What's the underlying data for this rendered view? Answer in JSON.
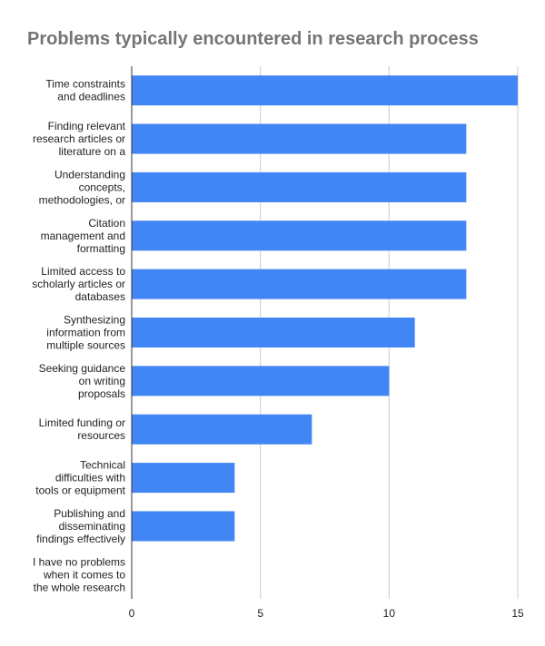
{
  "chart_data": {
    "type": "bar",
    "orientation": "horizontal",
    "title": "Problems typically encountered in research process",
    "xlabel": "",
    "ylabel": "",
    "xlim": [
      0,
      15
    ],
    "ticks": [
      0,
      5,
      10,
      15
    ],
    "grid": true,
    "legend": "none",
    "bar_color": "#4285f4",
    "categories": [
      [
        "Time constraints",
        "and deadlines"
      ],
      [
        "Finding relevant",
        "research articles or",
        "literature on a"
      ],
      [
        "Understanding",
        "concepts,",
        "methodologies, or"
      ],
      [
        "Citation",
        "management and",
        "formatting"
      ],
      [
        "Limited access to",
        "scholarly articles or",
        "databases"
      ],
      [
        "Synthesizing",
        "information from",
        "multiple sources"
      ],
      [
        "Seeking guidance",
        "on writing",
        "proposals"
      ],
      [
        "Limited funding or",
        "resources"
      ],
      [
        "Technical",
        "difficulties with",
        "tools or equipment"
      ],
      [
        "Publishing and",
        "disseminating",
        "findings effectively"
      ],
      [
        "I have no problems",
        "when it comes to",
        "the whole research"
      ]
    ],
    "values": [
      15,
      13,
      13,
      13,
      13,
      11,
      10,
      7,
      4,
      4,
      0
    ]
  }
}
